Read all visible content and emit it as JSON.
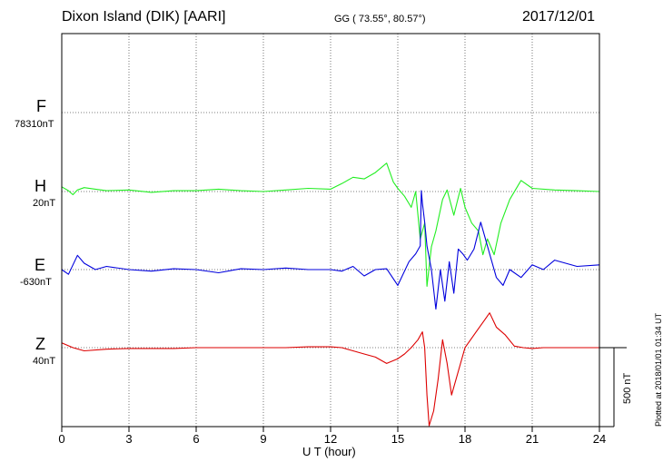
{
  "header": {
    "title": "Dixon Island (DIK)  [AARI]",
    "coords": "GG ( 73.55°,  80.57°)",
    "date": "2017/12/01"
  },
  "footer": {
    "plotted": "Plotted at 2018/01/01 01:34 UT",
    "scale_label": "500 nT"
  },
  "colors": {
    "F": "#ffaa00",
    "H": "#22ee22",
    "E": "#0000dd",
    "Z": "#dd0000"
  },
  "chart_data": {
    "type": "line",
    "xlabel": "U T (hour)",
    "xlim": [
      0,
      24
    ],
    "xticks": [
      0,
      3,
      6,
      9,
      12,
      15,
      18,
      21,
      24
    ],
    "grid": true,
    "scale_bar_nT": 500,
    "series": [
      {
        "name": "F",
        "baseline": "78310nT",
        "x": [],
        "y": []
      },
      {
        "name": "H",
        "baseline": "20nT",
        "x": [
          0,
          0.3,
          0.5,
          0.7,
          1,
          1.5,
          2,
          3,
          4,
          5,
          6,
          7,
          8,
          9,
          10,
          11,
          12,
          12.5,
          13,
          13.5,
          14,
          14.5,
          14.8,
          15,
          15.3,
          15.6,
          15.8,
          16,
          16.2,
          16.3,
          16.5,
          16.7,
          17,
          17.2,
          17.5,
          17.8,
          18,
          18.3,
          18.6,
          18.8,
          19,
          19.3,
          19.6,
          20,
          20.5,
          21,
          22,
          23,
          24
        ],
        "y": [
          30,
          5,
          -20,
          10,
          25,
          15,
          5,
          10,
          -5,
          5,
          5,
          15,
          5,
          0,
          10,
          20,
          15,
          50,
          90,
          80,
          120,
          180,
          60,
          20,
          -30,
          -100,
          0,
          -300,
          -200,
          -600,
          -350,
          -250,
          -50,
          10,
          -150,
          20,
          -100,
          -200,
          -250,
          -400,
          -300,
          -400,
          -200,
          -50,
          70,
          20,
          10,
          5,
          0
        ]
      },
      {
        "name": "E",
        "baseline": "-630nT",
        "x": [
          0,
          0.3,
          0.7,
          1,
          1.5,
          2,
          3,
          4,
          5,
          6,
          7,
          8,
          9,
          10,
          11,
          12,
          12.5,
          13,
          13.5,
          14,
          14.5,
          15,
          15.5,
          15.8,
          16,
          16.05,
          16.1,
          16.2,
          16.3,
          16.5,
          16.7,
          16.9,
          17.1,
          17.3,
          17.5,
          17.7,
          17.9,
          18.1,
          18.4,
          18.7,
          18.9,
          19.1,
          19.4,
          19.7,
          20,
          20.5,
          21,
          21.5,
          22,
          23,
          24
        ],
        "y": [
          0,
          -30,
          90,
          40,
          0,
          20,
          0,
          -10,
          5,
          0,
          -20,
          5,
          0,
          10,
          0,
          0,
          -10,
          20,
          -40,
          0,
          5,
          -100,
          50,
          100,
          150,
          500,
          420,
          300,
          150,
          0,
          -250,
          0,
          -200,
          50,
          -150,
          130,
          100,
          60,
          130,
          300,
          200,
          100,
          -50,
          -100,
          0,
          -50,
          30,
          0,
          60,
          20,
          30
        ]
      },
      {
        "name": "Z",
        "baseline": "40nT",
        "x": [
          0,
          0.5,
          1,
          2,
          3,
          4,
          5,
          6,
          7,
          8,
          9,
          10,
          11,
          12,
          12.5,
          13,
          13.5,
          14,
          14.5,
          15,
          15.3,
          15.6,
          15.9,
          16.1,
          16.2,
          16.3,
          16.4,
          16.6,
          16.8,
          17,
          17.2,
          17.4,
          17.7,
          18,
          18.5,
          18.9,
          19.1,
          19.4,
          19.8,
          20.2,
          20.6,
          21,
          21.5,
          22,
          23,
          24
        ],
        "y": [
          30,
          0,
          -20,
          -10,
          -5,
          -5,
          -5,
          0,
          0,
          0,
          0,
          0,
          5,
          5,
          0,
          -20,
          -40,
          -60,
          -100,
          -70,
          -40,
          0,
          50,
          100,
          0,
          -300,
          -550,
          -400,
          -200,
          50,
          -100,
          -300,
          -150,
          0,
          100,
          180,
          220,
          130,
          80,
          10,
          0,
          -5,
          0,
          0,
          0,
          0
        ]
      }
    ]
  }
}
